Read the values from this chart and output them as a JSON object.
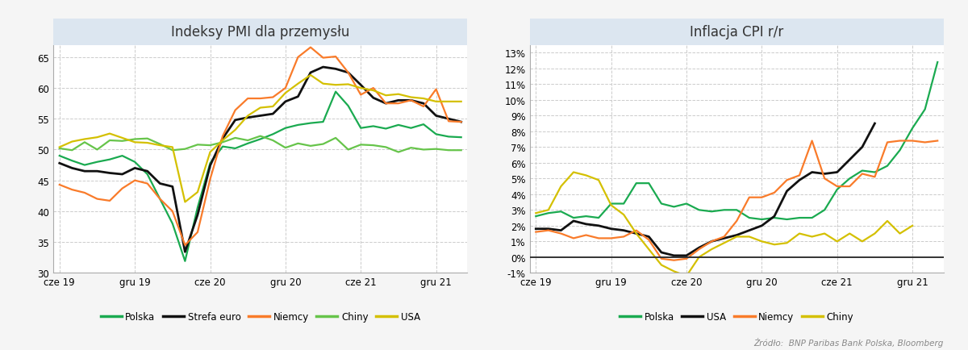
{
  "pmi_title": "Indeksy PMI dla przemysłu",
  "cpi_title": "Inflacja CPI r/r",
  "source_text": "Źródło:  BNP Paribas Bank Polska, Bloomberg",
  "x_labels": [
    "cze 19",
    "gru 19",
    "cze 20",
    "gru 20",
    "cze 21",
    "gru 21"
  ],
  "x_tick_pos": [
    0,
    6,
    12,
    18,
    24,
    30
  ],
  "n_months": 33,
  "pmi_ylim": [
    30,
    67
  ],
  "pmi_yticks": [
    30,
    35,
    40,
    45,
    50,
    55,
    60,
    65
  ],
  "cpi_ylim": [
    -0.01,
    0.135
  ],
  "bg_color": "#f5f5f5",
  "plot_bg_color": "#ffffff",
  "grid_color": "#cccccc",
  "title_bg_color": "#dce6f0",
  "pmi_polska": [
    49.0,
    48.2,
    47.5,
    48.0,
    48.4,
    49.0,
    48.0,
    46.0,
    42.0,
    38.0,
    31.9,
    40.6,
    47.8,
    50.5,
    50.2,
    51.0,
    51.7,
    52.5,
    53.5,
    54.0,
    54.3,
    54.5,
    59.4,
    57.1,
    53.5,
    53.8,
    53.4,
    54.0,
    53.5,
    54.1,
    52.5,
    52.1,
    52.0
  ],
  "pmi_strefa_euro": [
    47.8,
    47.0,
    46.5,
    46.5,
    46.2,
    46.0,
    47.0,
    46.5,
    44.5,
    44.0,
    33.4,
    39.4,
    47.4,
    51.8,
    54.8,
    55.2,
    55.5,
    55.8,
    57.8,
    58.6,
    62.5,
    63.4,
    63.1,
    62.5,
    60.5,
    58.4,
    57.5,
    58.0,
    58.0,
    57.5,
    55.5,
    55.0,
    54.5
  ],
  "pmi_niemcy": [
    44.3,
    43.5,
    43.0,
    42.0,
    41.7,
    43.7,
    45.0,
    44.5,
    42.0,
    40.0,
    34.5,
    36.6,
    45.2,
    52.2,
    56.4,
    58.3,
    58.3,
    58.5,
    60.0,
    65.0,
    66.6,
    64.9,
    65.1,
    62.5,
    58.9,
    60.0,
    57.5,
    57.5,
    58.0,
    57.0,
    59.8,
    54.6,
    54.5
  ],
  "pmi_chiny": [
    50.2,
    49.9,
    51.2,
    50.0,
    51.5,
    51.4,
    51.7,
    51.8,
    50.9,
    49.9,
    50.1,
    50.8,
    50.7,
    51.2,
    51.9,
    51.5,
    52.2,
    51.5,
    50.3,
    51.0,
    50.6,
    50.9,
    51.9,
    50.0,
    50.8,
    50.7,
    50.4,
    49.6,
    50.3,
    50.0,
    50.1,
    49.9,
    49.9
  ],
  "pmi_usa": [
    50.4,
    51.3,
    51.7,
    52.0,
    52.6,
    51.9,
    51.2,
    51.1,
    50.7,
    50.4,
    41.5,
    43.1,
    49.6,
    51.5,
    53.2,
    55.5,
    56.8,
    57.0,
    59.2,
    60.7,
    62.1,
    60.7,
    60.5,
    60.6,
    60.0,
    59.6,
    58.8,
    59.0,
    58.5,
    58.3,
    57.8,
    57.8,
    57.8
  ],
  "cpi_polska_x": [
    0,
    1,
    2,
    3,
    4,
    5,
    6,
    7,
    8,
    9,
    10,
    11,
    12,
    13,
    14,
    15,
    16,
    17,
    18,
    19,
    20,
    21,
    22,
    23,
    24,
    25,
    26,
    27,
    28,
    29,
    30,
    31,
    32
  ],
  "cpi_polska_y": [
    2.6,
    2.8,
    2.9,
    2.5,
    2.6,
    2.5,
    3.4,
    3.4,
    4.7,
    4.7,
    3.4,
    3.2,
    3.4,
    3.0,
    2.9,
    3.0,
    3.0,
    2.5,
    2.4,
    2.5,
    2.4,
    2.5,
    2.5,
    3.0,
    4.3,
    5.0,
    5.5,
    5.4,
    5.8,
    6.8,
    8.2,
    9.4,
    12.4
  ],
  "cpi_usa_x": [
    0,
    1,
    2,
    3,
    4,
    5,
    6,
    7,
    8,
    9,
    10,
    11,
    12,
    13,
    14,
    15,
    16,
    17,
    18,
    19,
    20,
    21,
    22,
    23,
    24,
    25,
    26,
    27
  ],
  "cpi_usa_y": [
    1.8,
    1.8,
    1.7,
    2.3,
    2.1,
    2.0,
    1.8,
    1.7,
    1.5,
    1.3,
    0.3,
    0.1,
    0.1,
    0.6,
    1.0,
    1.2,
    1.4,
    1.7,
    2.0,
    2.6,
    4.2,
    4.9,
    5.4,
    5.3,
    5.4,
    6.2,
    7.0,
    8.5
  ],
  "cpi_niemcy_x": [
    0,
    1,
    2,
    3,
    4,
    5,
    6,
    7,
    8,
    9,
    10,
    11,
    12,
    13,
    14,
    15,
    16,
    17,
    18,
    19,
    20,
    21,
    22,
    23,
    24,
    25,
    26,
    27,
    28,
    29,
    30,
    31,
    32
  ],
  "cpi_niemcy_y": [
    1.6,
    1.7,
    1.5,
    1.2,
    1.4,
    1.2,
    1.2,
    1.3,
    1.7,
    1.1,
    -0.1,
    -0.2,
    -0.1,
    0.5,
    1.0,
    1.3,
    2.3,
    3.8,
    3.8,
    4.1,
    4.9,
    5.2,
    7.4,
    5.0,
    4.5,
    4.5,
    5.3,
    5.1,
    7.3,
    7.4,
    7.4,
    7.3,
    7.4
  ],
  "cpi_chiny_x": [
    0,
    1,
    2,
    3,
    4,
    5,
    6,
    7,
    8,
    9,
    10,
    11,
    12,
    13,
    14,
    15,
    16,
    17,
    18,
    19,
    20,
    21,
    22,
    23,
    24,
    25,
    26,
    27,
    28,
    29,
    30
  ],
  "cpi_chiny_y": [
    2.8,
    3.0,
    4.5,
    5.4,
    5.2,
    4.9,
    3.3,
    2.7,
    1.5,
    0.5,
    -0.5,
    -0.9,
    -1.2,
    0.0,
    0.5,
    0.9,
    1.3,
    1.3,
    1.0,
    0.8,
    0.9,
    1.5,
    1.3,
    1.5,
    1.0,
    1.5,
    1.0,
    1.5,
    2.3,
    1.5,
    2.0
  ],
  "legend_pmi": [
    {
      "label": "Polska",
      "color": "#1aaa50"
    },
    {
      "label": "Strefa euro",
      "color": "#111111"
    },
    {
      "label": "Niemcy",
      "color": "#f97b2a"
    },
    {
      "label": "Chiny",
      "color": "#66c44a"
    },
    {
      "label": "USA",
      "color": "#d4c000"
    }
  ],
  "legend_cpi": [
    {
      "label": "Polska",
      "color": "#1aaa50"
    },
    {
      "label": "USA",
      "color": "#111111"
    },
    {
      "label": "Niemcy",
      "color": "#f97b2a"
    },
    {
      "label": "Chiny",
      "color": "#d4c000"
    }
  ]
}
